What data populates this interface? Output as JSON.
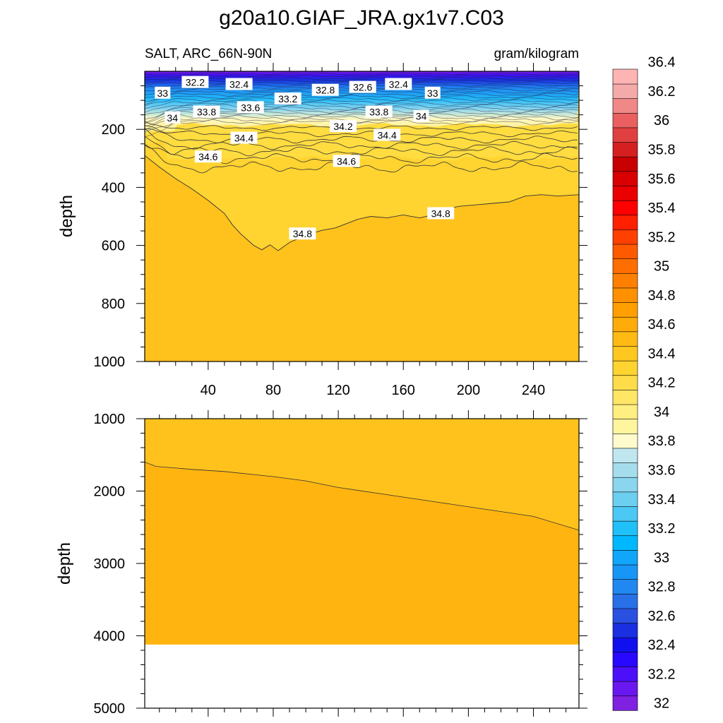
{
  "title": "g20a10.GIAF_JRA.gx1v7.C03",
  "subtitle_left": "SALT, ARC_66N-90N",
  "subtitle_right": "gram/kilogram",
  "chart_data": [
    {
      "type": "contour",
      "panel": "upper",
      "ylabel": "depth",
      "ylim": [
        1000,
        0
      ],
      "xlim": [
        1,
        268
      ],
      "xticks": [
        40,
        80,
        120,
        160,
        200,
        240
      ],
      "yticks": [
        200,
        400,
        600,
        800,
        1000
      ],
      "contour_labels": [
        {
          "text": "32.2",
          "x": 32,
          "y": 38
        },
        {
          "text": "32.4",
          "x": 59,
          "y": 45
        },
        {
          "text": "32.8",
          "x": 112,
          "y": 65
        },
        {
          "text": "32.6",
          "x": 135,
          "y": 55
        },
        {
          "text": "32.4",
          "x": 157,
          "y": 45
        },
        {
          "text": "33",
          "x": 12,
          "y": 75
        },
        {
          "text": "33.2",
          "x": 89,
          "y": 95
        },
        {
          "text": "33.6",
          "x": 66,
          "y": 125
        },
        {
          "text": "33.8",
          "x": 39,
          "y": 140
        },
        {
          "text": "33.8",
          "x": 145,
          "y": 140
        },
        {
          "text": "33",
          "x": 178,
          "y": 75
        },
        {
          "text": "34",
          "x": 18,
          "y": 160
        },
        {
          "text": "34",
          "x": 171,
          "y": 155
        },
        {
          "text": "34.2",
          "x": 123,
          "y": 190
        },
        {
          "text": "34.4",
          "x": 62,
          "y": 230
        },
        {
          "text": "34.4",
          "x": 150,
          "y": 220
        },
        {
          "text": "34.6",
          "x": 40,
          "y": 295
        },
        {
          "text": "34.6",
          "x": 125,
          "y": 310
        },
        {
          "text": "34.8",
          "x": 98,
          "y": 560
        },
        {
          "text": "34.8",
          "x": 183,
          "y": 490
        }
      ],
      "contour_348_depth": [
        [
          1,
          290
        ],
        [
          10,
          330
        ],
        [
          20,
          370
        ],
        [
          30,
          405
        ],
        [
          40,
          445
        ],
        [
          50,
          490
        ],
        [
          55,
          530
        ],
        [
          60,
          560
        ],
        [
          68,
          600
        ],
        [
          73,
          615
        ],
        [
          78,
          598
        ],
        [
          83,
          618
        ],
        [
          90,
          590
        ],
        [
          100,
          565
        ],
        [
          110,
          548
        ],
        [
          118,
          540
        ],
        [
          125,
          525
        ],
        [
          132,
          510
        ],
        [
          140,
          500
        ],
        [
          150,
          505
        ],
        [
          160,
          495
        ],
        [
          170,
          505
        ],
        [
          178,
          495
        ],
        [
          185,
          475
        ],
        [
          195,
          465
        ],
        [
          205,
          460
        ],
        [
          215,
          455
        ],
        [
          225,
          450
        ],
        [
          235,
          430
        ],
        [
          245,
          425
        ],
        [
          255,
          430
        ],
        [
          268,
          425
        ]
      ]
    },
    {
      "type": "contour",
      "panel": "lower",
      "ylabel": "depth",
      "ylim": [
        5000,
        1000
      ],
      "xlim": [
        1,
        268
      ],
      "yticks": [
        1000,
        2000,
        3000,
        4000,
        5000
      ],
      "bottom_depth": 4120,
      "contour_35_depth": [
        [
          1,
          1600
        ],
        [
          8,
          1660
        ],
        [
          30,
          1700
        ],
        [
          50,
          1730
        ],
        [
          80,
          1800
        ],
        [
          100,
          1860
        ],
        [
          120,
          1950
        ],
        [
          150,
          2050
        ],
        [
          180,
          2150
        ],
        [
          210,
          2250
        ],
        [
          240,
          2350
        ],
        [
          268,
          2540
        ]
      ]
    }
  ],
  "colorbar": {
    "colors": [
      "#8020e0",
      "#6a18f0",
      "#4c10f8",
      "#2808ff",
      "#1010ee",
      "#1a2fe0",
      "#2a50e0",
      "#2870e8",
      "#2088f0",
      "#1896f5",
      "#10a6fa",
      "#00b8ff",
      "#20c0f8",
      "#4cc8f4",
      "#6ccff0",
      "#8ad6ee",
      "#a6ddec",
      "#c0e6f0",
      "#fffbcc",
      "#fff59e",
      "#ffee80",
      "#ffe666",
      "#ffdc4a",
      "#ffd330",
      "#ffc820",
      "#ffba14",
      "#ffac0a",
      "#ffa000",
      "#ff9000",
      "#ff8000",
      "#ff6e00",
      "#ff5a00",
      "#ff4000",
      "#ff2000",
      "#ff0000",
      "#ea0000",
      "#d80000",
      "#c80000",
      "#d42020",
      "#e04040",
      "#ea6060",
      "#f08888",
      "#f5aaaa",
      "#ffb4b4"
    ],
    "labels": [
      "32",
      "32.2",
      "32.4",
      "32.6",
      "32.8",
      "33",
      "33.2",
      "33.4",
      "33.6",
      "33.8",
      "34",
      "34.2",
      "34.4",
      "34.6",
      "34.8",
      "35",
      "35.2",
      "35.4",
      "35.6",
      "35.8",
      "36",
      "36.2",
      "36.4"
    ]
  }
}
